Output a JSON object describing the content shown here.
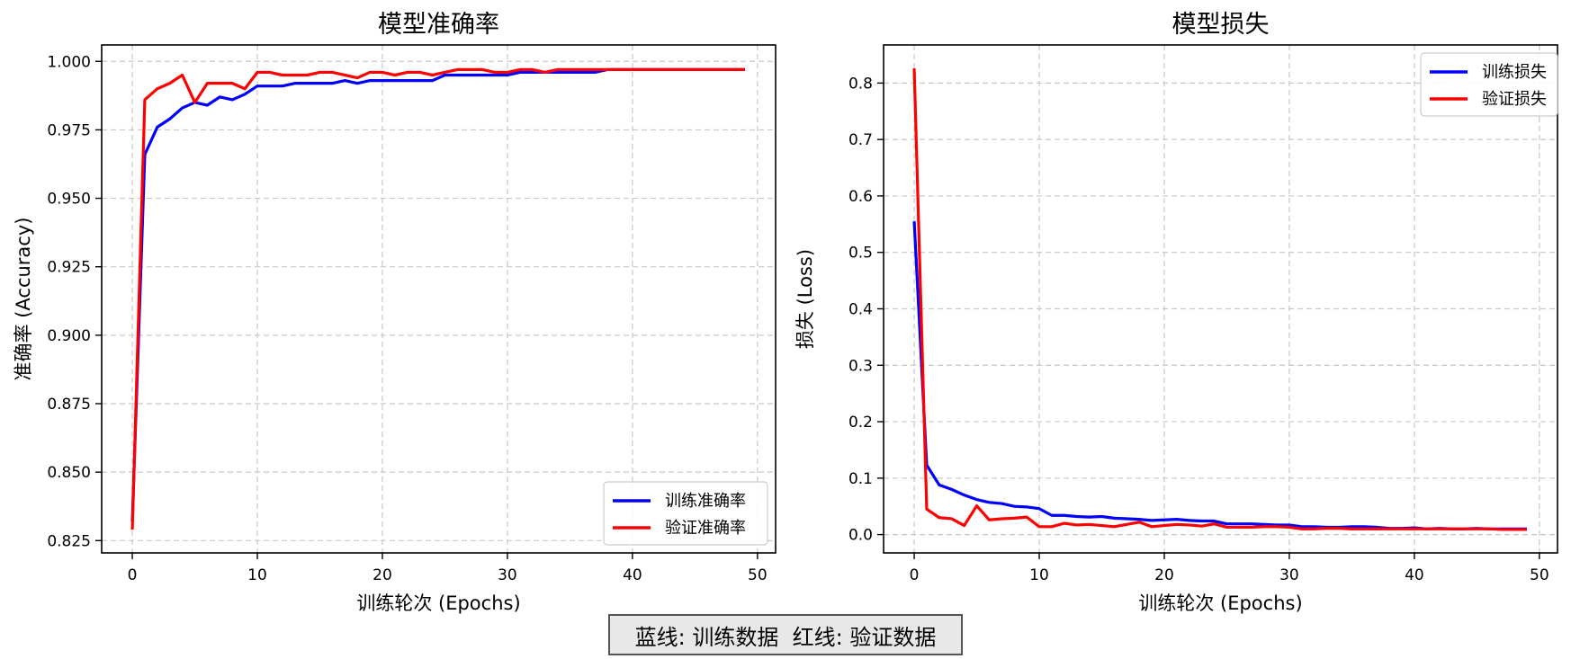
{
  "chart_data": [
    {
      "type": "line",
      "title": "模型准确率",
      "xlabel": "训练轮次 (Epochs)",
      "ylabel": "准确率 (Accuracy)",
      "xlim": [
        -2.45,
        51.45
      ],
      "ylim": [
        0.8205,
        1.006
      ],
      "xticks": [
        0,
        10,
        20,
        30,
        40,
        50
      ],
      "yticks": [
        0.825,
        0.85,
        0.875,
        0.9,
        0.925,
        0.95,
        0.975,
        1.0
      ],
      "ytick_labels": [
        "0.825",
        "0.850",
        "0.875",
        "0.900",
        "0.925",
        "0.950",
        "0.975",
        "1.000"
      ],
      "grid": true,
      "legend_position": "lower-right",
      "series": [
        {
          "name": "训练准确率",
          "color": "#0000ff",
          "x": [
            0,
            1,
            2,
            3,
            4,
            5,
            6,
            7,
            8,
            9,
            10,
            11,
            12,
            13,
            14,
            15,
            16,
            17,
            18,
            19,
            20,
            21,
            22,
            23,
            24,
            25,
            26,
            27,
            28,
            29,
            30,
            31,
            32,
            33,
            34,
            35,
            36,
            37,
            38,
            39,
            40,
            41,
            42,
            43,
            44,
            45,
            46,
            47,
            48,
            49
          ],
          "y": [
            0.832,
            0.966,
            0.976,
            0.979,
            0.983,
            0.985,
            0.984,
            0.987,
            0.986,
            0.988,
            0.991,
            0.991,
            0.991,
            0.992,
            0.992,
            0.992,
            0.992,
            0.993,
            0.992,
            0.993,
            0.993,
            0.993,
            0.993,
            0.993,
            0.993,
            0.995,
            0.995,
            0.995,
            0.995,
            0.995,
            0.995,
            0.996,
            0.996,
            0.996,
            0.996,
            0.996,
            0.996,
            0.996,
            0.997,
            0.997,
            0.997,
            0.997,
            0.997,
            0.997,
            0.997,
            0.997,
            0.997,
            0.997,
            0.997,
            0.997
          ]
        },
        {
          "name": "验证准确率",
          "color": "#ff0000",
          "x": [
            0,
            1,
            2,
            3,
            4,
            5,
            6,
            7,
            8,
            9,
            10,
            11,
            12,
            13,
            14,
            15,
            16,
            17,
            18,
            19,
            20,
            21,
            22,
            23,
            24,
            25,
            26,
            27,
            28,
            29,
            30,
            31,
            32,
            33,
            34,
            35,
            36,
            37,
            38,
            39,
            40,
            41,
            42,
            43,
            44,
            45,
            46,
            47,
            48,
            49
          ],
          "y": [
            0.829,
            0.986,
            0.99,
            0.992,
            0.995,
            0.985,
            0.992,
            0.992,
            0.992,
            0.99,
            0.996,
            0.996,
            0.995,
            0.995,
            0.995,
            0.996,
            0.996,
            0.995,
            0.994,
            0.996,
            0.996,
            0.995,
            0.996,
            0.996,
            0.995,
            0.996,
            0.997,
            0.997,
            0.997,
            0.996,
            0.996,
            0.997,
            0.997,
            0.996,
            0.997,
            0.997,
            0.997,
            0.997,
            0.997,
            0.997,
            0.997,
            0.997,
            0.997,
            0.997,
            0.997,
            0.997,
            0.997,
            0.997,
            0.997,
            0.997
          ]
        }
      ]
    },
    {
      "type": "line",
      "title": "模型损失",
      "xlabel": "训练轮次 (Epochs)",
      "ylabel": "损失 (Loss)",
      "xlim": [
        -2.45,
        51.45
      ],
      "ylim": [
        -0.0325,
        0.8675
      ],
      "xticks": [
        0,
        10,
        20,
        30,
        40,
        50
      ],
      "yticks": [
        0.0,
        0.1,
        0.2,
        0.3,
        0.4,
        0.5,
        0.6,
        0.7,
        0.8
      ],
      "ytick_labels": [
        "0.0",
        "0.1",
        "0.2",
        "0.3",
        "0.4",
        "0.5",
        "0.6",
        "0.7",
        "0.8"
      ],
      "grid": true,
      "legend_position": "upper-right",
      "series": [
        {
          "name": "训练损失",
          "color": "#0000ff",
          "x": [
            0,
            1,
            2,
            3,
            4,
            5,
            6,
            7,
            8,
            9,
            10,
            11,
            12,
            13,
            14,
            15,
            16,
            17,
            18,
            19,
            20,
            21,
            22,
            23,
            24,
            25,
            26,
            27,
            28,
            29,
            30,
            31,
            32,
            33,
            34,
            35,
            36,
            37,
            38,
            39,
            40,
            41,
            42,
            43,
            44,
            45,
            46,
            47,
            48,
            49
          ],
          "y": [
            0.555,
            0.123,
            0.088,
            0.08,
            0.07,
            0.062,
            0.057,
            0.055,
            0.05,
            0.049,
            0.046,
            0.034,
            0.034,
            0.032,
            0.031,
            0.032,
            0.029,
            0.028,
            0.027,
            0.025,
            0.026,
            0.027,
            0.025,
            0.024,
            0.024,
            0.019,
            0.019,
            0.019,
            0.018,
            0.017,
            0.017,
            0.014,
            0.014,
            0.013,
            0.013,
            0.014,
            0.014,
            0.013,
            0.011,
            0.011,
            0.012,
            0.01,
            0.011,
            0.01,
            0.01,
            0.011,
            0.01,
            0.01,
            0.01,
            0.01
          ]
        },
        {
          "name": "验证损失",
          "color": "#ff0000",
          "x": [
            0,
            1,
            2,
            3,
            4,
            5,
            6,
            7,
            8,
            9,
            10,
            11,
            12,
            13,
            14,
            15,
            16,
            17,
            18,
            19,
            20,
            21,
            22,
            23,
            24,
            25,
            26,
            27,
            28,
            29,
            30,
            31,
            32,
            33,
            34,
            35,
            36,
            37,
            38,
            39,
            40,
            41,
            42,
            43,
            44,
            45,
            46,
            47,
            48,
            49
          ],
          "y": [
            0.826,
            0.045,
            0.03,
            0.028,
            0.016,
            0.051,
            0.026,
            0.028,
            0.029,
            0.031,
            0.014,
            0.014,
            0.02,
            0.017,
            0.018,
            0.016,
            0.014,
            0.018,
            0.022,
            0.014,
            0.016,
            0.018,
            0.017,
            0.015,
            0.019,
            0.013,
            0.013,
            0.013,
            0.014,
            0.014,
            0.013,
            0.01,
            0.01,
            0.011,
            0.011,
            0.01,
            0.01,
            0.01,
            0.01,
            0.01,
            0.01,
            0.01,
            0.01,
            0.01,
            0.01,
            0.01,
            0.01,
            0.009,
            0.009,
            0.009
          ]
        }
      ]
    }
  ],
  "caption": "蓝线: 训练数据  红线: 验证数据"
}
